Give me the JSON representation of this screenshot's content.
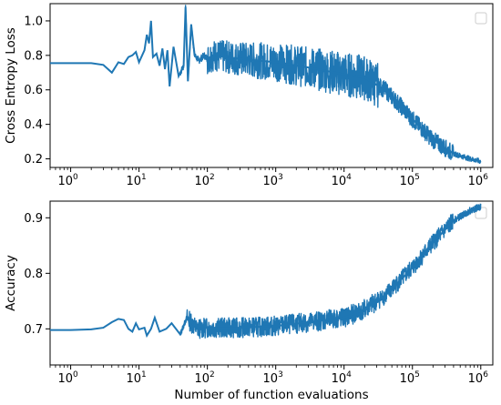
{
  "chart_data": [
    {
      "type": "line",
      "id": "loss",
      "xlabel": "",
      "ylabel": "Cross Entropy Loss",
      "xscale": "log",
      "xlim": [
        0.5,
        1500000
      ],
      "ylim": [
        0.15,
        1.1
      ],
      "yticks": [
        "0.2",
        "0.4",
        "0.6",
        "0.8",
        "1.0"
      ],
      "yticks_values": [
        0.2,
        0.4,
        0.6,
        0.8,
        1.0
      ],
      "xticks": [
        "10^0",
        "10^1",
        "10^2",
        "10^3",
        "10^4",
        "10^5",
        "10^6"
      ],
      "xticks_values": [
        1,
        10,
        100,
        1000,
        10000,
        100000,
        1000000
      ],
      "legend": "top-right",
      "color": "#1f77b4",
      "series": [
        {
          "values": [
            [
              0.5,
              0.755
            ],
            [
              1,
              0.755
            ],
            [
              2,
              0.755
            ],
            [
              3,
              0.745
            ],
            [
              4,
              0.7
            ],
            [
              5,
              0.76
            ],
            [
              6,
              0.75
            ],
            [
              7,
              0.79
            ],
            [
              8,
              0.8
            ],
            [
              9,
              0.82
            ],
            [
              10,
              0.76
            ],
            [
              12,
              0.83
            ],
            [
              13,
              0.92
            ],
            [
              14,
              0.87
            ],
            [
              15,
              1.0
            ],
            [
              16,
              0.79
            ],
            [
              18,
              0.81
            ],
            [
              20,
              0.74
            ],
            [
              22,
              0.84
            ],
            [
              24,
              0.72
            ],
            [
              26,
              0.83
            ],
            [
              28,
              0.62
            ],
            [
              32,
              0.85
            ],
            [
              38,
              0.68
            ],
            [
              45,
              0.74
            ],
            [
              48,
              1.08
            ],
            [
              52,
              0.65
            ],
            [
              58,
              0.98
            ],
            [
              65,
              0.8
            ],
            [
              75,
              0.77
            ],
            [
              90,
              0.8
            ],
            [
              100,
              0.78
            ],
            [
              120,
              0.8
            ],
            [
              300,
              0.78
            ],
            [
              1000,
              0.76
            ],
            [
              3000,
              0.73
            ],
            [
              10000,
              0.69
            ],
            [
              20000,
              0.67
            ],
            [
              40000,
              0.6
            ],
            [
              70000,
              0.5
            ],
            [
              100000,
              0.43
            ],
            [
              200000,
              0.31
            ],
            [
              400000,
              0.23
            ],
            [
              700000,
              0.2
            ],
            [
              1000000,
              0.185
            ]
          ]
        }
      ]
    },
    {
      "type": "line",
      "id": "accuracy",
      "xlabel": "Number of function evaluations",
      "ylabel": "Accuracy",
      "xscale": "log",
      "xlim": [
        0.5,
        1500000
      ],
      "ylim": [
        0.635,
        0.93
      ],
      "yticks": [
        "0.7",
        "0.8",
        "0.9"
      ],
      "yticks_values": [
        0.7,
        0.8,
        0.9
      ],
      "xticks": [
        "10^0",
        "10^1",
        "10^2",
        "10^3",
        "10^4",
        "10^5",
        "10^6"
      ],
      "xticks_values": [
        1,
        10,
        100,
        1000,
        10000,
        100000,
        1000000
      ],
      "legend": "top-right",
      "color": "#1f77b4",
      "series": [
        {
          "values": [
            [
              0.5,
              0.698
            ],
            [
              1,
              0.698
            ],
            [
              2,
              0.699
            ],
            [
              3,
              0.702
            ],
            [
              4,
              0.712
            ],
            [
              5,
              0.718
            ],
            [
              6,
              0.716
            ],
            [
              7,
              0.7
            ],
            [
              8,
              0.695
            ],
            [
              9,
              0.71
            ],
            [
              10,
              0.699
            ],
            [
              12,
              0.702
            ],
            [
              13,
              0.688
            ],
            [
              15,
              0.7
            ],
            [
              17,
              0.72
            ],
            [
              20,
              0.695
            ],
            [
              25,
              0.7
            ],
            [
              30,
              0.71
            ],
            [
              40,
              0.69
            ],
            [
              50,
              0.72
            ],
            [
              70,
              0.7
            ],
            [
              100,
              0.702
            ],
            [
              300,
              0.702
            ],
            [
              1000,
              0.705
            ],
            [
              3000,
              0.712
            ],
            [
              10000,
              0.72
            ],
            [
              20000,
              0.735
            ],
            [
              40000,
              0.76
            ],
            [
              70000,
              0.79
            ],
            [
              100000,
              0.81
            ],
            [
              200000,
              0.855
            ],
            [
              400000,
              0.895
            ],
            [
              700000,
              0.913
            ],
            [
              1000000,
              0.92
            ]
          ]
        }
      ]
    }
  ]
}
